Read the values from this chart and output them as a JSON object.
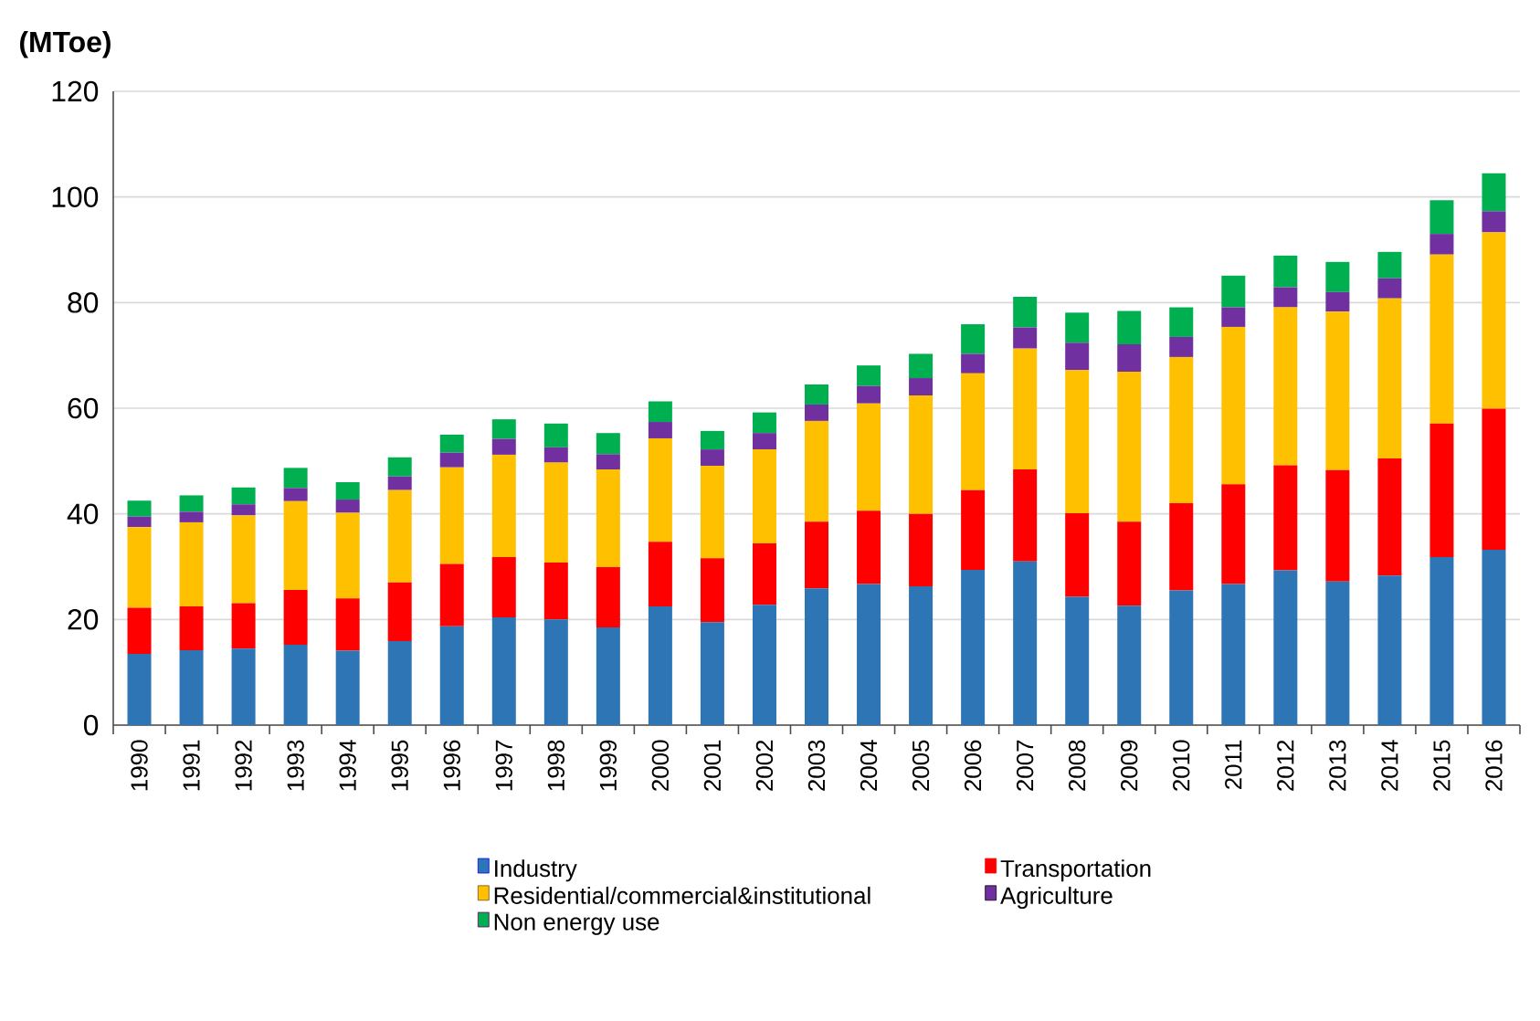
{
  "chart_data": {
    "type": "bar",
    "stacked": true,
    "ylabel": "(MToe)",
    "categories": [
      "1990",
      "1991",
      "1992",
      "1993",
      "1994",
      "1995",
      "1996",
      "1997",
      "1998",
      "1999",
      "2000",
      "2001",
      "2002",
      "2003",
      "2004",
      "2005",
      "2006",
      "2007",
      "2008",
      "2009",
      "2010",
      "2011",
      "2012",
      "2013",
      "2014",
      "2015",
      "2016"
    ],
    "series": [
      {
        "name": "Industry",
        "color": "#2e75b6",
        "values": [
          13.5,
          14.2,
          14.5,
          15.2,
          14.1,
          15.9,
          18.7,
          20.4,
          20.0,
          18.5,
          22.5,
          19.5,
          22.8,
          25.9,
          26.7,
          26.3,
          29.4,
          31.0,
          24.3,
          22.6,
          25.5,
          26.7,
          29.3,
          27.2,
          28.3,
          31.8,
          33.2
        ]
      },
      {
        "name": "Transportation",
        "color": "#ff0000",
        "values": [
          8.7,
          8.3,
          8.6,
          10.4,
          9.9,
          11.1,
          11.8,
          11.4,
          10.8,
          11.4,
          12.2,
          12.1,
          11.6,
          12.6,
          13.9,
          13.7,
          15.1,
          17.4,
          15.8,
          15.9,
          16.5,
          18.9,
          19.9,
          21.1,
          22.2,
          25.3,
          26.7
        ]
      },
      {
        "name": "Residential/commercial&institutional",
        "color": "#ffc000",
        "values": [
          15.3,
          15.9,
          16.6,
          16.8,
          16.2,
          17.5,
          18.3,
          19.4,
          18.9,
          18.5,
          19.6,
          17.5,
          17.8,
          19.1,
          20.3,
          22.4,
          22.1,
          22.9,
          27.1,
          28.4,
          27.7,
          29.8,
          29.9,
          30.0,
          30.3,
          32.0,
          33.4
        ]
      },
      {
        "name": "Agriculture",
        "color": "#7030a0",
        "values": [
          2.0,
          2.0,
          2.1,
          2.5,
          2.5,
          2.6,
          2.8,
          3.0,
          2.9,
          2.9,
          3.1,
          3.1,
          3.1,
          3.1,
          3.3,
          3.3,
          3.7,
          4.0,
          5.2,
          5.2,
          3.8,
          3.7,
          3.8,
          3.7,
          3.8,
          3.9,
          4.0
        ]
      },
      {
        "name": "Non energy use",
        "color": "#00b050",
        "values": [
          3.0,
          3.1,
          3.2,
          3.8,
          3.3,
          3.6,
          3.4,
          3.7,
          4.5,
          4.0,
          3.9,
          3.5,
          3.9,
          3.8,
          3.9,
          4.6,
          5.6,
          5.8,
          5.7,
          6.3,
          5.6,
          6.0,
          6.0,
          5.7,
          5.0,
          6.4,
          7.2
        ]
      }
    ],
    "ylim": [
      0,
      120
    ],
    "yticks": [
      0,
      20,
      40,
      60,
      80,
      100,
      120
    ],
    "grid": "y",
    "legend": "bottom"
  }
}
